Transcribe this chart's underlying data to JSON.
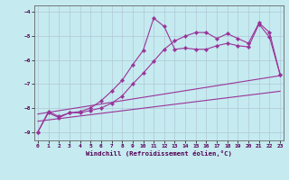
{
  "xlabel": "Windchill (Refroidissement éolien,°C)",
  "background_color": "#c5eaef",
  "line_color": "#993399",
  "xlim": [
    -0.3,
    23.3
  ],
  "ylim": [
    -9.35,
    -3.72
  ],
  "xticks": [
    0,
    1,
    2,
    3,
    4,
    5,
    6,
    7,
    8,
    9,
    10,
    11,
    12,
    13,
    14,
    15,
    16,
    17,
    18,
    19,
    20,
    21,
    22,
    23
  ],
  "yticks": [
    -9,
    -8,
    -7,
    -6,
    -5,
    -4
  ],
  "grid_color": "#b0c8d8",
  "series": [
    {
      "x": [
        0,
        1,
        2,
        3,
        4,
        5,
        6,
        7,
        8,
        9,
        10,
        11,
        12,
        13,
        14,
        15,
        16,
        17,
        18,
        19,
        20,
        21,
        22,
        23
      ],
      "y": [
        -9.0,
        -8.15,
        -8.35,
        -8.2,
        -8.15,
        -8.0,
        -7.7,
        -7.3,
        -6.85,
        -6.2,
        -5.6,
        -4.25,
        -4.6,
        -5.55,
        -5.5,
        -5.55,
        -5.55,
        -5.4,
        -5.3,
        -5.4,
        -5.45,
        -4.5,
        -5.05,
        -6.6
      ],
      "with_marker": true
    },
    {
      "x": [
        0,
        1,
        2,
        3,
        4,
        5,
        6,
        7,
        8,
        9,
        10,
        11,
        12,
        13,
        14,
        15,
        16,
        17,
        18,
        19,
        20,
        21,
        22,
        23
      ],
      "y": [
        -9.0,
        -8.2,
        -8.4,
        -8.2,
        -8.2,
        -8.1,
        -8.0,
        -7.8,
        -7.5,
        -7.0,
        -6.55,
        -6.05,
        -5.55,
        -5.2,
        -5.0,
        -4.85,
        -4.85,
        -5.1,
        -4.9,
        -5.1,
        -5.3,
        -4.45,
        -4.85,
        -6.6
      ],
      "with_marker": true
    },
    {
      "x": [
        0,
        23
      ],
      "y": [
        -8.25,
        -6.65
      ],
      "with_marker": false
    },
    {
      "x": [
        0,
        23
      ],
      "y": [
        -8.55,
        -7.3
      ],
      "with_marker": false
    }
  ]
}
